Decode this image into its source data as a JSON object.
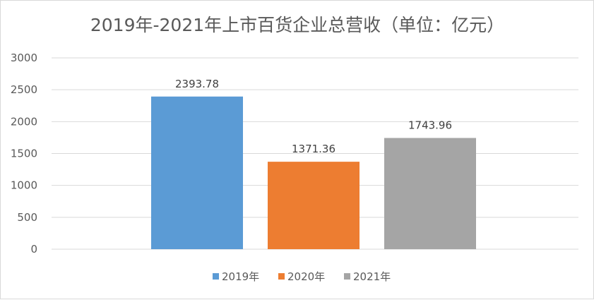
{
  "chart_data": {
    "type": "bar",
    "title": "2019年-2021年上市百货企业总营收（单位：亿元）",
    "categories": [
      "2019年",
      "2020年",
      "2021年"
    ],
    "values": [
      2393.78,
      1371.36,
      1743.96
    ],
    "data_labels": [
      "2393.78",
      "1371.36",
      "1743.96"
    ],
    "colors": [
      "#5b9bd5",
      "#ed7d31",
      "#a5a5a5"
    ],
    "ylim": [
      0,
      3000
    ],
    "yticks": [
      0,
      500,
      1000,
      1500,
      2000,
      2500,
      3000
    ],
    "xlabel": "",
    "ylabel": "",
    "grid": true,
    "legend": {
      "position": "bottom",
      "entries": [
        "2019年",
        "2020年",
        "2021年"
      ]
    }
  }
}
